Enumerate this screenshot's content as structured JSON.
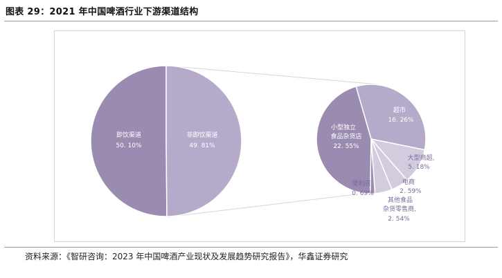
{
  "figure": {
    "title": "图表 29：2021 年中国啤酒行业下游渠道结构",
    "source": "资料来源：《智研咨询：2023 年中国啤酒产业现状及发展趋势研究报告》，华鑫证券研究"
  },
  "colors": {
    "dark": "#9a8bb0",
    "light": "#b6aacb",
    "pale": "#d3ccdf",
    "label_outside": "#7b6a9d"
  },
  "chart_data": {
    "type": "pie",
    "subtype": "pie-of-pie",
    "main_pie": {
      "slices": [
        {
          "name": "即饮渠道",
          "value": 50.1,
          "label": "50. 10%"
        },
        {
          "name": "非即饮渠道",
          "value": 49.81,
          "label": "49. 81%"
        }
      ]
    },
    "detail_pie": {
      "expands": "非即饮渠道",
      "slices": [
        {
          "name": "超市",
          "value": 16.26,
          "label": "16. 26%"
        },
        {
          "name": "大型商超",
          "value": 5.18,
          "label": "5. 18%"
        },
        {
          "name": "电商",
          "value": 2.59,
          "label": "2. 59%"
        },
        {
          "name": "其他食品杂货零售商",
          "value": 2.54,
          "label": "2. 54%"
        },
        {
          "name": "便利店",
          "value": 0.69,
          "label": "0. 69%"
        },
        {
          "name": "小型独立食品杂货店",
          "value": 22.55,
          "label": "22. 55%"
        }
      ]
    }
  }
}
